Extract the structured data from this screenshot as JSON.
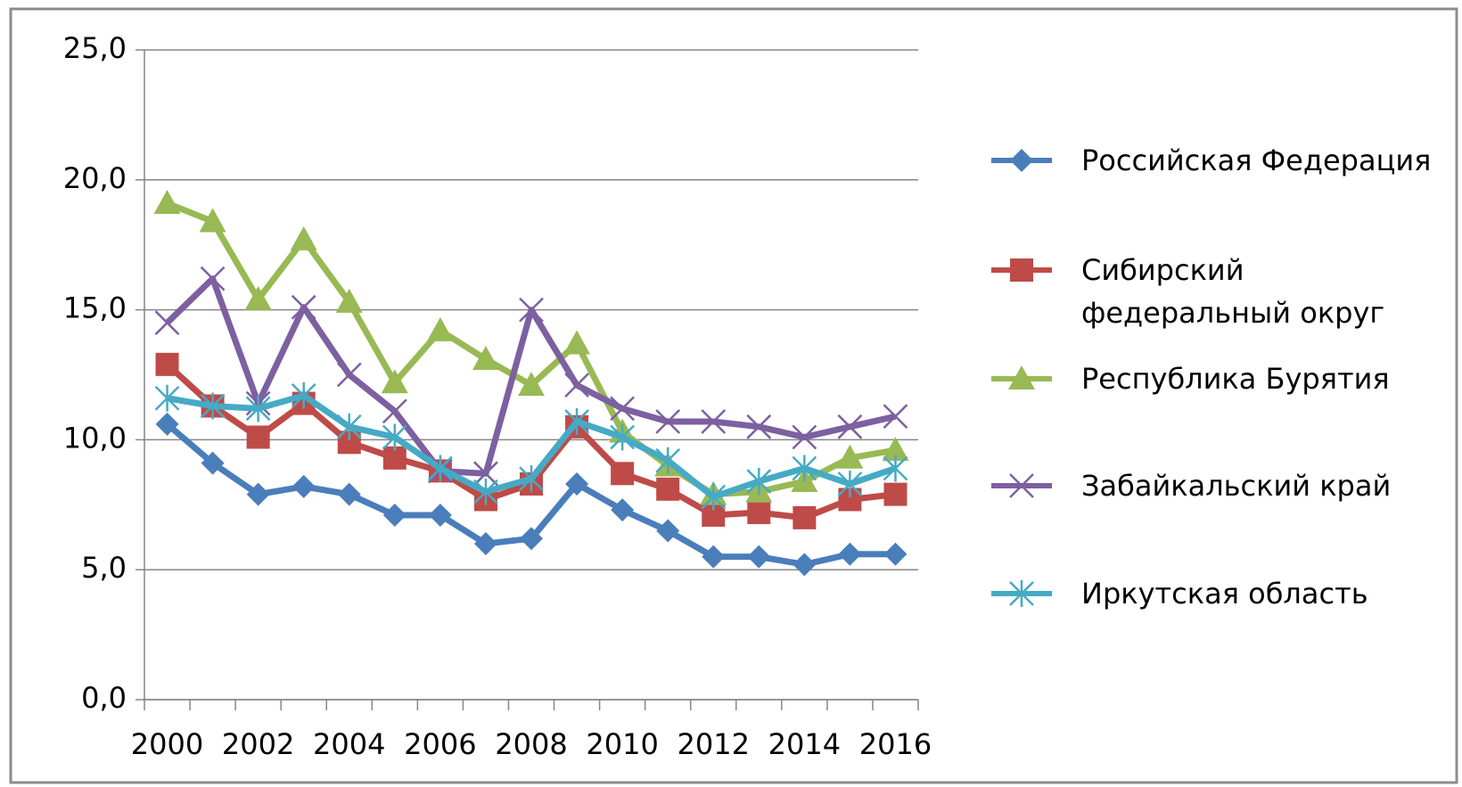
{
  "chart_data": {
    "type": "line",
    "categories": [
      "2000",
      null,
      "2002",
      null,
      "2004",
      null,
      "2006",
      null,
      "2008",
      null,
      "2010",
      null,
      "2012",
      null,
      "2014",
      null,
      "2016"
    ],
    "ylim": [
      0,
      25
    ],
    "yticks": [
      {
        "value": 0,
        "label": "0,0"
      },
      {
        "value": 5,
        "label": "5,0"
      },
      {
        "value": 10,
        "label": "10,0"
      },
      {
        "value": 15,
        "label": "15,0"
      },
      {
        "value": 20,
        "label": "20,0"
      },
      {
        "value": 25,
        "label": "25,0"
      }
    ],
    "grid": true,
    "legend": "right",
    "series": [
      {
        "name": "Российская Федерация",
        "color": "#4a7ebb",
        "marker": "diamond",
        "values": [
          10.6,
          9.1,
          7.9,
          8.2,
          7.9,
          7.1,
          7.1,
          6.0,
          6.2,
          8.3,
          7.3,
          6.5,
          5.5,
          5.5,
          5.2,
          5.6,
          5.6
        ]
      },
      {
        "name": "Сибирский федеральный округ",
        "color": "#be4b48",
        "marker": "square",
        "values": [
          12.9,
          11.3,
          10.1,
          11.4,
          9.9,
          9.3,
          8.8,
          7.7,
          8.3,
          10.5,
          8.7,
          8.1,
          7.1,
          7.2,
          7.0,
          7.7,
          7.9
        ]
      },
      {
        "name": "Республика Бурятия",
        "color": "#98b954",
        "marker": "triangle",
        "values": [
          19.1,
          18.4,
          15.4,
          17.7,
          15.3,
          12.2,
          14.2,
          13.1,
          12.1,
          13.7,
          10.3,
          9.0,
          7.9,
          8.0,
          8.4,
          9.3,
          9.6
        ]
      },
      {
        "name": "Забайкальский край",
        "color": "#7d60a0",
        "marker": "x",
        "values": [
          14.5,
          16.2,
          11.4,
          15.1,
          12.5,
          11.1,
          8.8,
          8.7,
          15.0,
          12.1,
          11.2,
          10.7,
          10.7,
          10.5,
          10.1,
          10.5,
          10.9
        ]
      },
      {
        "name": "Иркутская область",
        "color": "#46aac5",
        "marker": "star",
        "values": [
          11.6,
          11.3,
          11.2,
          11.7,
          10.5,
          10.1,
          8.9,
          8.0,
          8.5,
          10.7,
          10.1,
          9.2,
          7.8,
          8.4,
          8.9,
          8.3,
          8.9
        ]
      }
    ]
  }
}
